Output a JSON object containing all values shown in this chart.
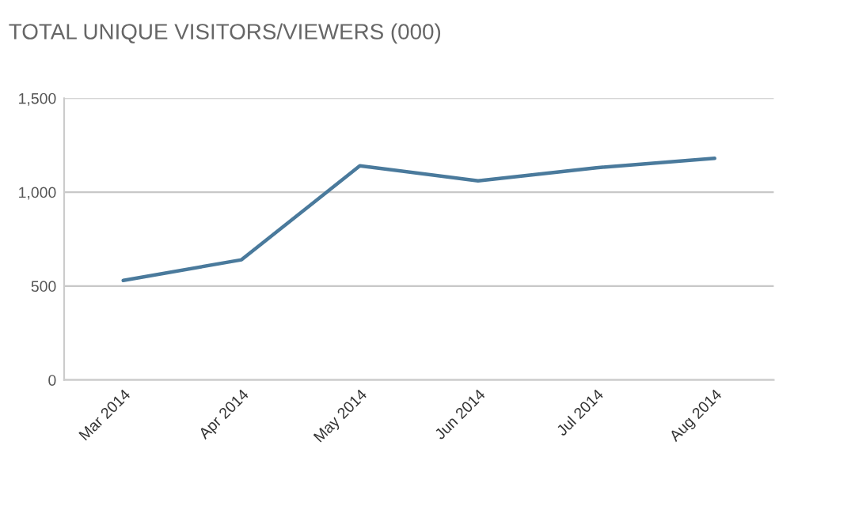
{
  "chart_data": {
    "type": "line",
    "title": "TOTAL UNIQUE VISITORS/VIEWERS (000)",
    "categories": [
      "Mar 2014",
      "Apr 2014",
      "May 2014",
      "Jun 2014",
      "Jul 2014",
      "Aug 2014"
    ],
    "series": [
      {
        "color": "#4a7a9c",
        "values": [
          530,
          640,
          1140,
          1060,
          1130,
          1180
        ]
      }
    ],
    "ylim": [
      0,
      1500
    ],
    "yticks": [
      0,
      {
        "value": 500,
        "label": "500"
      },
      {
        "value": 1000,
        "label": "1,000"
      },
      {
        "value": 1500,
        "label": "1,500"
      }
    ],
    "grid": "y",
    "marker": "none",
    "line_style": "solid"
  }
}
